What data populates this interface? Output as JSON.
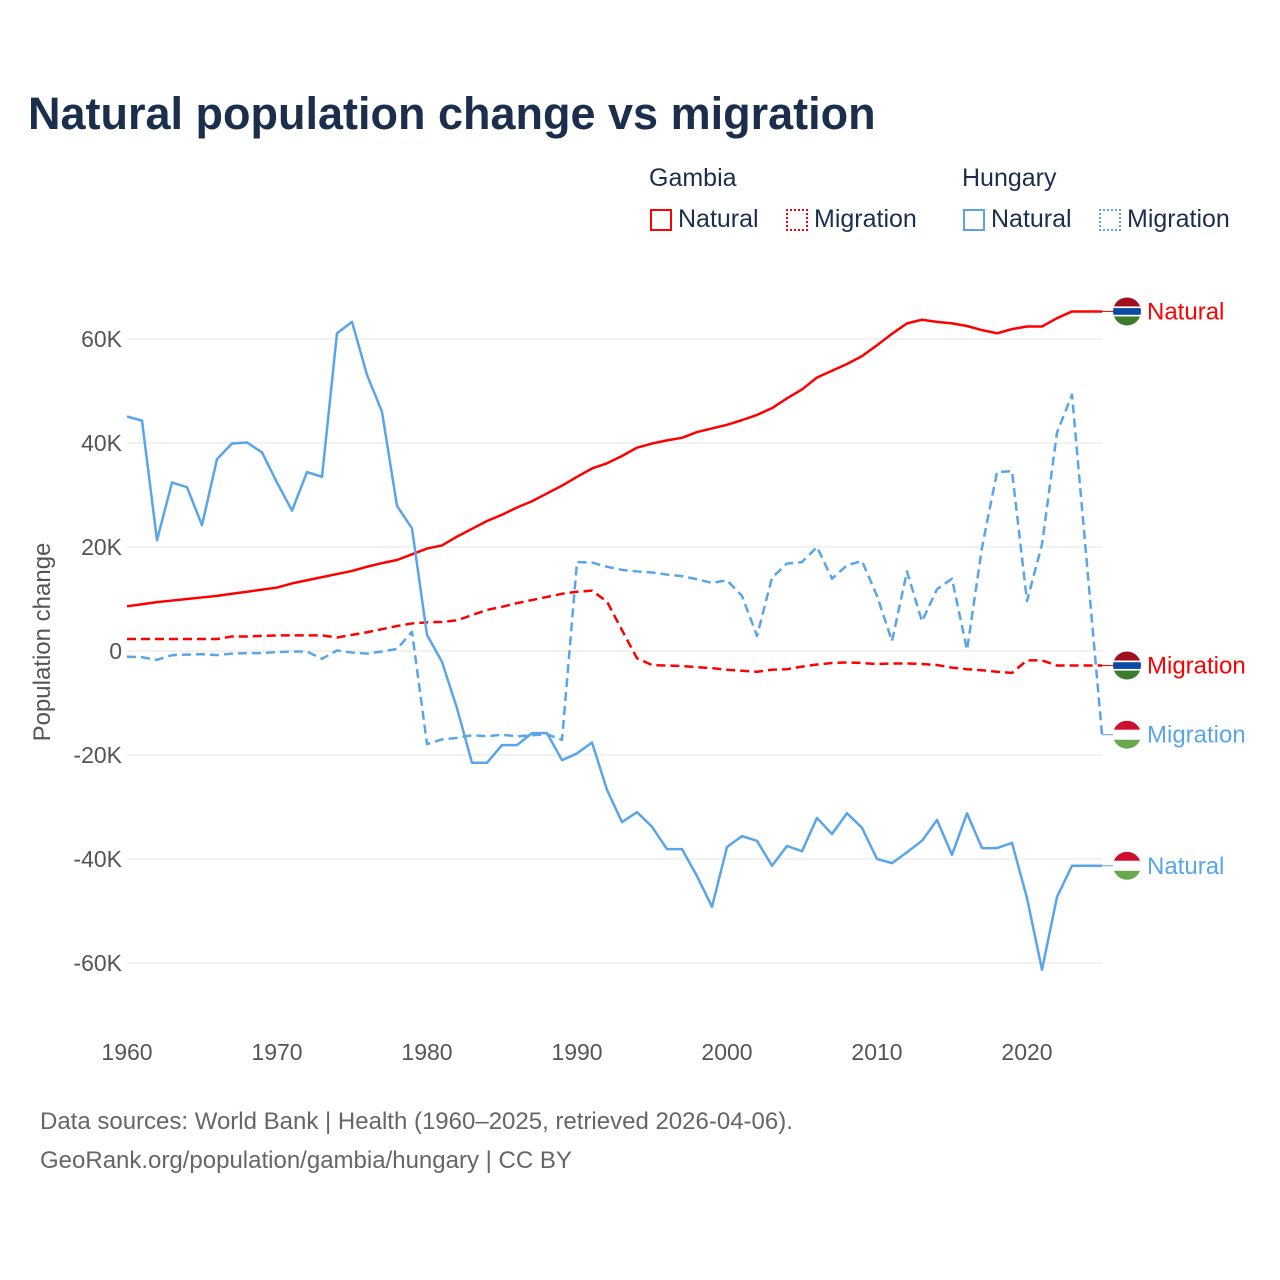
{
  "chart_data": {
    "type": "line",
    "title": "Natural population change vs migration",
    "xlabel": "",
    "ylabel": "Population change",
    "xlim": [
      1960,
      2025
    ],
    "ylim": [
      -70000,
      72000
    ],
    "x_ticks": [
      1960,
      1970,
      1980,
      1990,
      2000,
      2010,
      2020
    ],
    "y_ticks": [
      -60000,
      -40000,
      -20000,
      0,
      20000,
      40000,
      60000
    ],
    "y_tick_labels": [
      "-60K",
      "-40K",
      "-20K",
      "0",
      "20K",
      "40K",
      "60K"
    ],
    "grid": true,
    "legend_placement": "top-right",
    "legend": {
      "groups": [
        {
          "country": "Gambia",
          "items": [
            "Natural",
            "Migration"
          ]
        },
        {
          "country": "Hungary",
          "items": [
            "Natural",
            "Migration"
          ]
        }
      ]
    },
    "x": [
      1960,
      1961,
      1962,
      1963,
      1964,
      1965,
      1966,
      1967,
      1968,
      1969,
      1970,
      1971,
      1972,
      1973,
      1974,
      1975,
      1976,
      1977,
      1978,
      1979,
      1980,
      1981,
      1982,
      1983,
      1984,
      1985,
      1986,
      1987,
      1988,
      1989,
      1990,
      1991,
      1992,
      1993,
      1994,
      1995,
      1996,
      1997,
      1998,
      1999,
      2000,
      2001,
      2002,
      2003,
      2004,
      2005,
      2006,
      2007,
      2008,
      2009,
      2010,
      2011,
      2012,
      2013,
      2014,
      2015,
      2016,
      2017,
      2018,
      2019,
      2020,
      2021,
      2022,
      2023,
      2024,
      2025
    ],
    "series": [
      {
        "name": "Gambia Natural",
        "country": "Gambia",
        "kind": "Natural",
        "color": "#ff0000",
        "dash": false,
        "end_label": "Natural",
        "values": [
          8600,
          9000,
          9400,
          9700,
          10000,
          10300,
          10600,
          11000,
          11400,
          11800,
          12200,
          13000,
          13600,
          14200,
          14800,
          15400,
          16200,
          16900,
          17500,
          18600,
          19700,
          20300,
          22000,
          23500,
          25000,
          26200,
          27600,
          28800,
          30300,
          31800,
          33500,
          35100,
          36100,
          37500,
          39100,
          39900,
          40500,
          41000,
          42100,
          42800,
          43500,
          44400,
          45400,
          46700,
          48600,
          50300,
          52600,
          53900,
          55200,
          56700,
          58800,
          61000,
          63000,
          63700,
          63300,
          63000,
          62500,
          61700,
          61100,
          61900,
          62400,
          62400,
          64000,
          65300,
          65300,
          65300
        ]
      },
      {
        "name": "Gambia Migration",
        "country": "Gambia",
        "kind": "Migration",
        "color": "#ff0000",
        "dash": true,
        "end_label": "Migration",
        "values": [
          2300,
          2300,
          2300,
          2300,
          2300,
          2300,
          2300,
          2800,
          2800,
          2900,
          3000,
          3000,
          3000,
          3000,
          2600,
          3100,
          3600,
          4200,
          4800,
          5300,
          5500,
          5600,
          5900,
          6900,
          7900,
          8500,
          9200,
          9800,
          10400,
          11000,
          11400,
          11600,
          9500,
          4000,
          -1400,
          -2700,
          -2800,
          -2900,
          -3100,
          -3300,
          -3600,
          -3800,
          -4000,
          -3600,
          -3500,
          -3000,
          -2600,
          -2300,
          -2200,
          -2300,
          -2500,
          -2400,
          -2400,
          -2500,
          -2700,
          -3200,
          -3500,
          -3700,
          -4000,
          -4200,
          -1800,
          -1800,
          -2800,
          -2800,
          -2800,
          -2800
        ]
      },
      {
        "name": "Hungary Natural",
        "country": "Hungary",
        "kind": "Natural",
        "color": "#5aa5ea",
        "dash": false,
        "end_label": "Natural",
        "values": [
          45100,
          44300,
          21300,
          32400,
          31500,
          24200,
          36900,
          39900,
          40100,
          38200,
          32400,
          27000,
          34400,
          33500,
          61100,
          63300,
          53100,
          46000,
          27900,
          23600,
          3100,
          -2100,
          -11000,
          -21500,
          -21500,
          -18100,
          -18100,
          -15800,
          -15800,
          -21000,
          -19700,
          -17600,
          -26700,
          -32900,
          -31000,
          -33800,
          -38100,
          -38100,
          -43300,
          -49200,
          -37700,
          -35600,
          -36500,
          -41300,
          -37500,
          -38500,
          -32100,
          -35200,
          -31200,
          -34000,
          -40000,
          -40800,
          -38700,
          -36500,
          -32500,
          -39200,
          -31200,
          -37900,
          -37900,
          -36900,
          -47500,
          -61300,
          -47300,
          -41300,
          -41300,
          -41300
        ]
      },
      {
        "name": "Hungary Migration",
        "country": "Hungary",
        "kind": "Migration",
        "color": "#5aa5ea",
        "dash": true,
        "end_label": "Migration",
        "values": [
          -1100,
          -1200,
          -1700,
          -800,
          -700,
          -600,
          -800,
          -500,
          -400,
          -400,
          -200,
          -100,
          -100,
          -1500,
          100,
          -300,
          -500,
          -100,
          400,
          3700,
          -17900,
          -17000,
          -16700,
          -16200,
          -16400,
          -16100,
          -16400,
          -16200,
          -16000,
          -17100,
          17100,
          17000,
          16200,
          15600,
          15300,
          15100,
          14700,
          14400,
          13800,
          13100,
          13600,
          10600,
          2900,
          14100,
          16800,
          17100,
          20000,
          13900,
          16500,
          17300,
          10600,
          1900,
          15300,
          5700,
          11900,
          13900,
          200,
          19900,
          34400,
          34600,
          9600,
          20500,
          42000,
          49300,
          16600,
          -16100
        ]
      }
    ]
  },
  "footer": {
    "line1": "Data sources: World Bank | Health (1960–2025, retrieved 2026-04-06).",
    "line2": "GeoRank.org/population/gambia/hungary | CC BY"
  }
}
